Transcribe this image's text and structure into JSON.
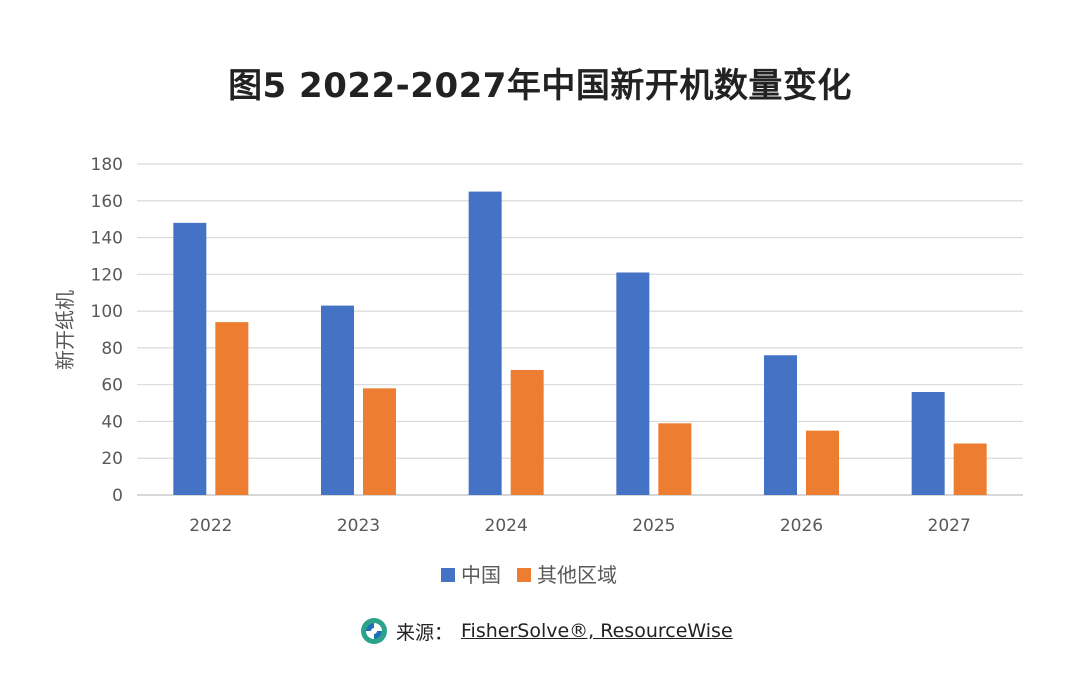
{
  "title": "图5  2022-2027年中国新开机数量变化",
  "chart_data": {
    "type": "bar",
    "categories": [
      "2022",
      "2023",
      "2024",
      "2025",
      "2026",
      "2027"
    ],
    "series": [
      {
        "name": "中国",
        "values": [
          148,
          103,
          165,
          121,
          76,
          56
        ],
        "color": "#4472C4"
      },
      {
        "name": "其他区域",
        "values": [
          94,
          58,
          68,
          39,
          35,
          28
        ],
        "color": "#ED7D31"
      }
    ],
    "ylabel": "新开纸机",
    "xlabel": "",
    "ylim": [
      0,
      180
    ],
    "yticks": [
      0,
      20,
      40,
      60,
      80,
      100,
      120,
      140,
      160,
      180
    ],
    "grid": true,
    "legend": "bottom"
  },
  "source": {
    "prefix": "来源：",
    "text": "FisherSolve®, ResourceWise",
    "logo_icon": "resourcewise-logo-icon"
  }
}
